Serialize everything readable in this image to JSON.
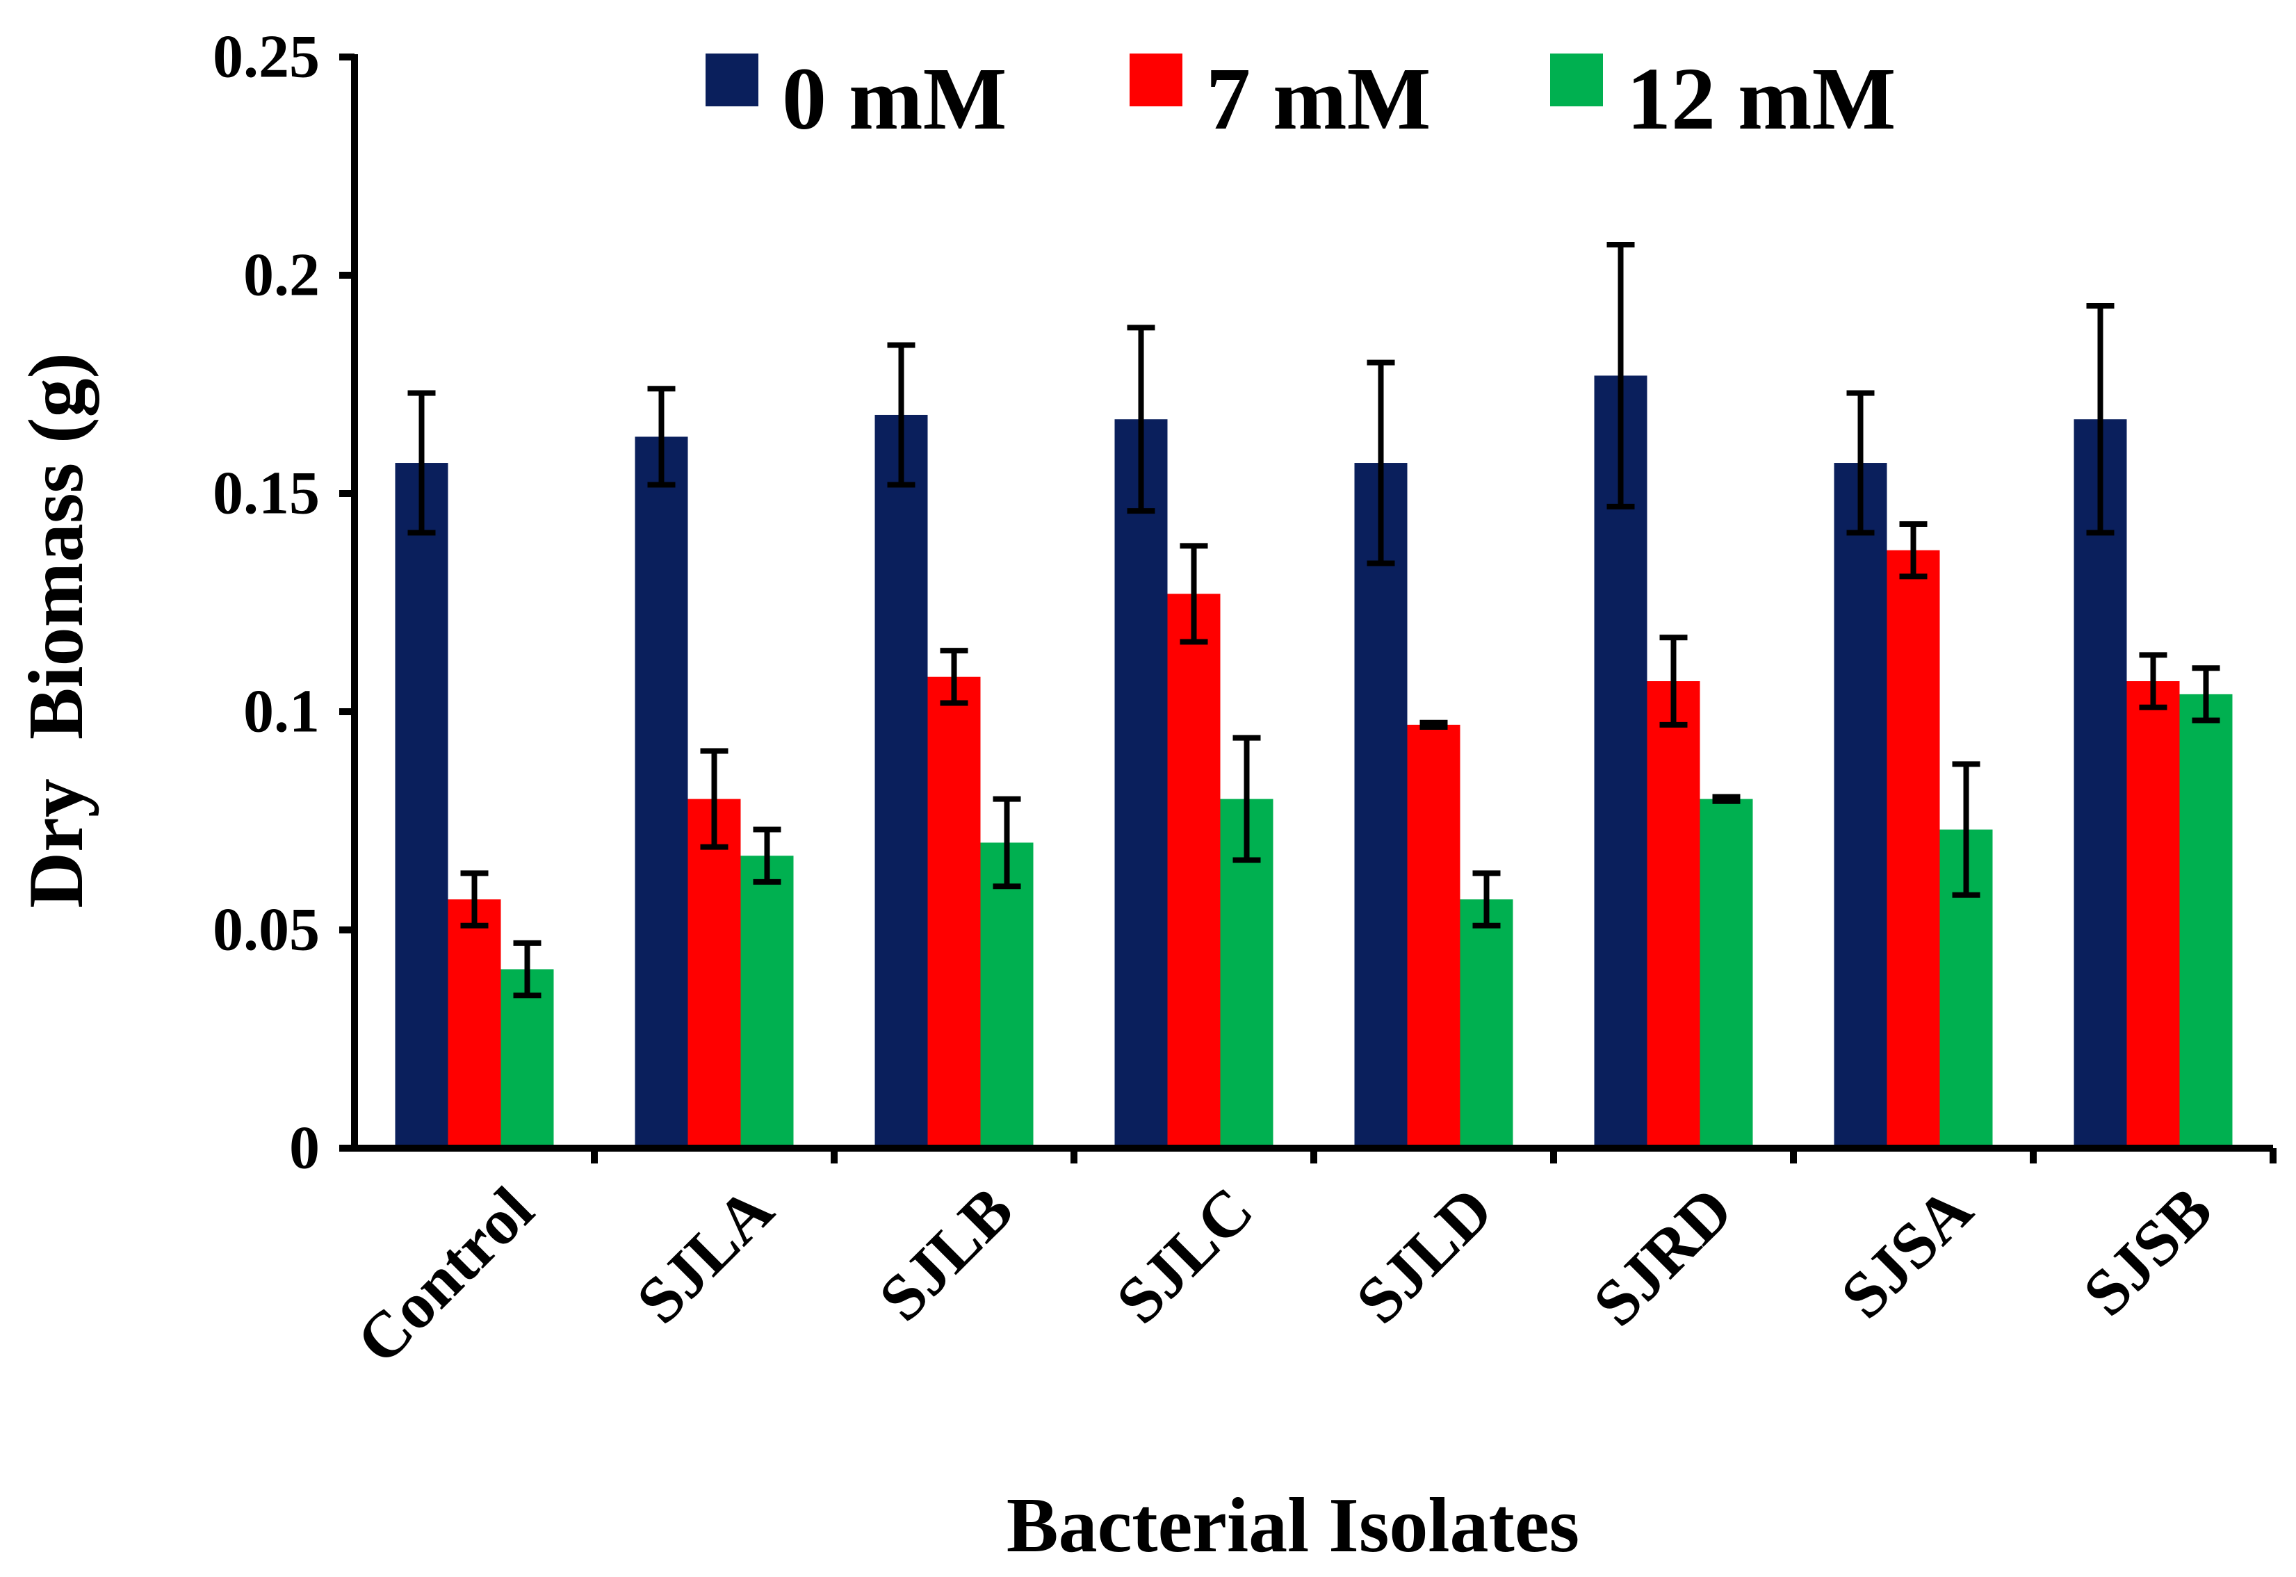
{
  "chart_data": {
    "type": "bar",
    "title": "",
    "xlabel": "Bacterial Isolates",
    "ylabel": "Dry  Biomass (g)",
    "ylim": [
      0,
      0.25
    ],
    "yticks": [
      "0",
      "0.05",
      "0.1",
      "0.15",
      "0.2",
      "0.25"
    ],
    "ytick_values": [
      0,
      0.05,
      0.1,
      0.15,
      0.2,
      0.25
    ],
    "grid": false,
    "legend_position": "top",
    "categories": [
      "Control",
      "SJLA",
      "SJLB",
      "SJLC",
      "SJLD",
      "SJRD",
      "SJSA",
      "SJSB"
    ],
    "series": [
      {
        "name": "0 mM",
        "color": "#0a1f5c",
        "values": [
          0.157,
          0.163,
          0.168,
          0.167,
          0.157,
          0.177,
          0.157,
          0.167
        ],
        "errors": [
          0.016,
          0.011,
          0.016,
          0.021,
          0.023,
          0.03,
          0.016,
          0.026
        ]
      },
      {
        "name": "7 mM",
        "color": "#ff0000",
        "values": [
          0.057,
          0.08,
          0.108,
          0.127,
          0.097,
          0.107,
          0.137,
          0.107
        ],
        "errors": [
          0.006,
          0.011,
          0.006,
          0.011,
          0.0005,
          0.01,
          0.006,
          0.006
        ]
      },
      {
        "name": "12 mM",
        "color": "#00b050",
        "values": [
          0.041,
          0.067,
          0.07,
          0.08,
          0.057,
          0.08,
          0.073,
          0.104
        ],
        "errors": [
          0.006,
          0.006,
          0.01,
          0.014,
          0.006,
          0.0005,
          0.015,
          0.006
        ]
      }
    ]
  }
}
